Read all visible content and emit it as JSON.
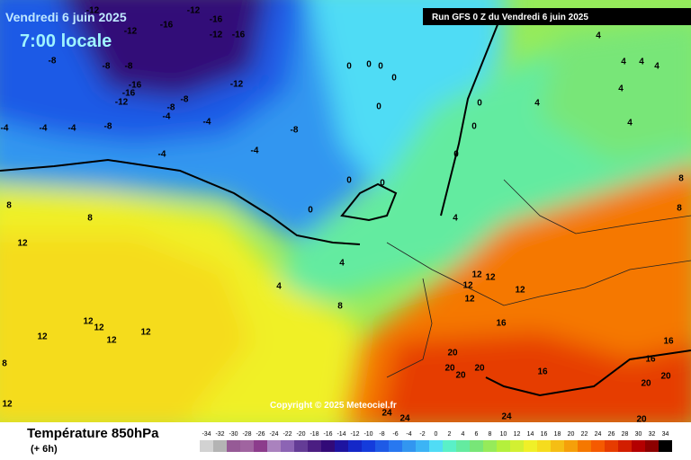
{
  "header": {
    "date": "Vendredi 6 juin 2025",
    "time": "7:00 locale",
    "run": "Run GFS 0 Z du Vendredi 6 juin 2025"
  },
  "copyright": "Copyright © 2025 Meteociel.fr",
  "footer": {
    "title": "Température 850hPa",
    "subtitle": "(+ 6h)"
  },
  "legend": {
    "ticks": [
      -34,
      -32,
      -30,
      -28,
      -26,
      -24,
      -22,
      -20,
      -18,
      -16,
      -14,
      -12,
      -10,
      -8,
      -6,
      -4,
      -2,
      0,
      2,
      4,
      6,
      8,
      10,
      12,
      14,
      16,
      18,
      20,
      22,
      24,
      26,
      28,
      30,
      32,
      34
    ],
    "colors": [
      "#d2d2d2",
      "#b4b4b4",
      "#965a96",
      "#a064a0",
      "#8c3c8c",
      "#aa82be",
      "#8c64b4",
      "#643c96",
      "#4b1e82",
      "#320a78",
      "#1e14a0",
      "#1428c8",
      "#143cdc",
      "#1e5ae6",
      "#2878f0",
      "#3296f0",
      "#3cb4f5",
      "#50dcf5",
      "#5af0c8",
      "#64eba0",
      "#78e678",
      "#96eb5a",
      "#b4f03c",
      "#d2f032",
      "#f0f028",
      "#f5dc1e",
      "#f5be14",
      "#f5a00a",
      "#f57800",
      "#f55a00",
      "#e63c00",
      "#d21e00",
      "#b40000",
      "#8c0000",
      "#000000"
    ]
  },
  "map_labels": [
    -12,
    -16,
    -16,
    -12,
    -12,
    -12,
    -16,
    -8,
    -8,
    -8,
    -16,
    -16,
    -12,
    -12,
    -8,
    -8,
    -4,
    -8,
    -4,
    -4,
    -4,
    -8,
    -4,
    -4,
    -4,
    0,
    0,
    0,
    0,
    0,
    0,
    0,
    0,
    0,
    0,
    0,
    8,
    8,
    12,
    4,
    4,
    4,
    8,
    12,
    12,
    12,
    12,
    12,
    12,
    12,
    12,
    12,
    12,
    16,
    16,
    16,
    16,
    20,
    20,
    20,
    20,
    20,
    20,
    20,
    24,
    24,
    24,
    4,
    4,
    4,
    4,
    4,
    4,
    4,
    8,
    8,
    8,
    12
  ]
}
